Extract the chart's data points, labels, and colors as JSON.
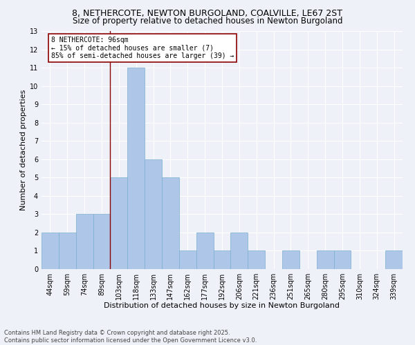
{
  "title": "8, NETHERCOTE, NEWTON BURGOLAND, COALVILLE, LE67 2ST",
  "subtitle": "Size of property relative to detached houses in Newton Burgoland",
  "xlabel": "Distribution of detached houses by size in Newton Burgoland",
  "ylabel": "Number of detached properties",
  "categories": [
    "44sqm",
    "59sqm",
    "74sqm",
    "89sqm",
    "103sqm",
    "118sqm",
    "133sqm",
    "147sqm",
    "162sqm",
    "177sqm",
    "192sqm",
    "206sqm",
    "221sqm",
    "236sqm",
    "251sqm",
    "265sqm",
    "280sqm",
    "295sqm",
    "310sqm",
    "324sqm",
    "339sqm"
  ],
  "values": [
    2,
    2,
    3,
    3,
    5,
    11,
    6,
    5,
    1,
    2,
    1,
    2,
    1,
    0,
    1,
    0,
    1,
    1,
    0,
    0,
    1
  ],
  "bar_color": "#aec6e8",
  "bar_edge_color": "#7aaed0",
  "vline_x": 3.5,
  "vline_color": "#8b0000",
  "annotation_text": "8 NETHERCOTE: 96sqm\n← 15% of detached houses are smaller (7)\n85% of semi-detached houses are larger (39) →",
  "annotation_box_color": "#ffffff",
  "annotation_box_edge_color": "#8b0000",
  "ylim": [
    0,
    13
  ],
  "yticks": [
    0,
    1,
    2,
    3,
    4,
    5,
    6,
    7,
    8,
    9,
    10,
    11,
    12,
    13
  ],
  "footnote": "Contains HM Land Registry data © Crown copyright and database right 2025.\nContains public sector information licensed under the Open Government Licence v3.0.",
  "bg_color": "#eef2f8",
  "grid_color": "#ffffff",
  "title_fontsize": 9,
  "subtitle_fontsize": 8.5,
  "xlabel_fontsize": 8,
  "ylabel_fontsize": 8,
  "tick_fontsize": 7,
  "annotation_fontsize": 7,
  "footnote_fontsize": 6
}
